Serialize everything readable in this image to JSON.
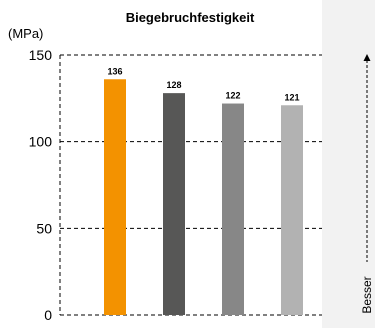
{
  "chart_data": {
    "type": "bar",
    "title": "Biegebruchfestigkeit",
    "unit_label": "(MPa)",
    "categories": [
      "",
      "",
      "",
      ""
    ],
    "values": [
      136,
      128,
      122,
      121
    ],
    "data_labels": [
      "136",
      "128",
      "122",
      "121"
    ],
    "bar_colors": [
      "#f39200",
      "#575756",
      "#878787",
      "#b2b2b2"
    ],
    "ylim": [
      0,
      150
    ],
    "yticks": [
      0,
      50,
      100,
      150
    ],
    "ytick_labels": [
      "0",
      "50",
      "100",
      "150"
    ],
    "grid": true,
    "grid_style": "dashed"
  },
  "indicator": {
    "label": "Besser"
  },
  "colors": {
    "side_panel": "#f2f2f2",
    "grid": "#000000"
  }
}
